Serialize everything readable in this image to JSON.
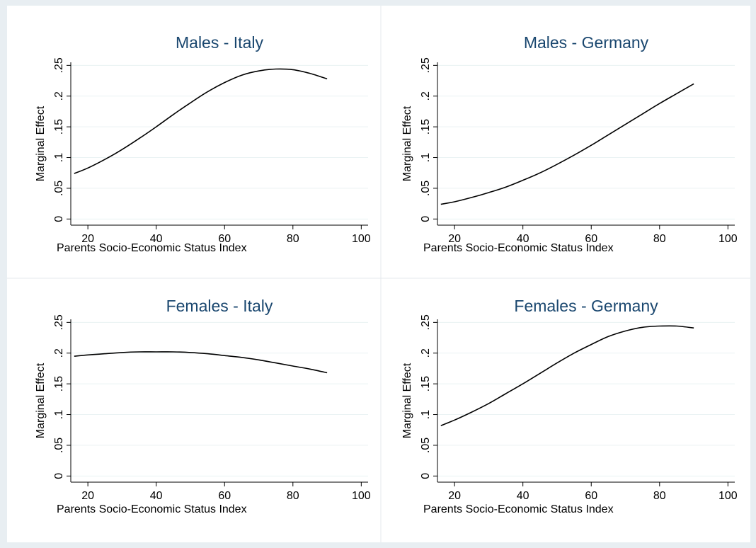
{
  "chart_data": [
    {
      "type": "line",
      "title": "Males - Italy",
      "xlabel": "Parents Socio-Economic Status Index",
      "ylabel": "Marginal Effect",
      "xlim": [
        15,
        102
      ],
      "ylim": [
        -0.01,
        0.255
      ],
      "xticks": [
        20,
        40,
        60,
        80,
        100
      ],
      "yticks": [
        0,
        0.05,
        0.1,
        0.15,
        0.2,
        0.25
      ],
      "xtick_labels": [
        "20",
        "40",
        "60",
        "80",
        "100"
      ],
      "ytick_labels": [
        "0",
        ".05",
        ".1",
        ".15",
        ".2",
        ".25"
      ],
      "grid": true,
      "series": [
        {
          "x": [
            16,
            20,
            25,
            30,
            35,
            40,
            45,
            50,
            55,
            60,
            65,
            70,
            75,
            80,
            85,
            90
          ],
          "y": [
            0.074,
            0.083,
            0.097,
            0.113,
            0.131,
            0.15,
            0.17,
            0.189,
            0.207,
            0.222,
            0.234,
            0.241,
            0.244,
            0.243,
            0.237,
            0.228
          ]
        }
      ]
    },
    {
      "type": "line",
      "title": "Males - Germany",
      "xlabel": "Parents Socio-Economic Status Index",
      "ylabel": "Marginal Effect",
      "xlim": [
        15,
        102
      ],
      "ylim": [
        -0.01,
        0.255
      ],
      "xticks": [
        20,
        40,
        60,
        80,
        100
      ],
      "yticks": [
        0,
        0.05,
        0.1,
        0.15,
        0.2,
        0.25
      ],
      "xtick_labels": [
        "20",
        "40",
        "60",
        "80",
        "100"
      ],
      "ytick_labels": [
        "0",
        ".05",
        ".1",
        ".15",
        ".2",
        ".25"
      ],
      "grid": true,
      "series": [
        {
          "x": [
            16,
            20,
            25,
            30,
            35,
            40,
            45,
            50,
            55,
            60,
            65,
            70,
            75,
            80,
            85,
            90
          ],
          "y": [
            0.024,
            0.028,
            0.035,
            0.043,
            0.052,
            0.063,
            0.075,
            0.089,
            0.104,
            0.12,
            0.137,
            0.154,
            0.171,
            0.188,
            0.204,
            0.22
          ]
        }
      ]
    },
    {
      "type": "line",
      "title": "Females - Italy",
      "xlabel": "Parents Socio-Economic Status Index",
      "ylabel": "Marginal Effect",
      "xlim": [
        15,
        102
      ],
      "ylim": [
        -0.01,
        0.255
      ],
      "xticks": [
        20,
        40,
        60,
        80,
        100
      ],
      "yticks": [
        0,
        0.05,
        0.1,
        0.15,
        0.2,
        0.25
      ],
      "xtick_labels": [
        "20",
        "40",
        "60",
        "80",
        "100"
      ],
      "ytick_labels": [
        "0",
        ".05",
        ".1",
        ".15",
        ".2",
        ".25"
      ],
      "grid": true,
      "series": [
        {
          "x": [
            16,
            20,
            25,
            30,
            35,
            40,
            45,
            50,
            55,
            60,
            65,
            70,
            75,
            80,
            85,
            90
          ],
          "y": [
            0.195,
            0.197,
            0.199,
            0.201,
            0.202,
            0.202,
            0.202,
            0.201,
            0.199,
            0.196,
            0.193,
            0.189,
            0.184,
            0.179,
            0.174,
            0.168
          ]
        }
      ]
    },
    {
      "type": "line",
      "title": "Females - Germany",
      "xlabel": "Parents Socio-Economic Status Index",
      "ylabel": "Marginal Effect",
      "xlim": [
        15,
        102
      ],
      "ylim": [
        -0.01,
        0.255
      ],
      "xticks": [
        20,
        40,
        60,
        80,
        100
      ],
      "yticks": [
        0,
        0.05,
        0.1,
        0.15,
        0.2,
        0.25
      ],
      "xtick_labels": [
        "20",
        "40",
        "60",
        "80",
        "100"
      ],
      "ytick_labels": [
        "0",
        ".05",
        ".1",
        ".15",
        ".2",
        ".25"
      ],
      "grid": true,
      "series": [
        {
          "x": [
            16,
            20,
            25,
            30,
            35,
            40,
            45,
            50,
            55,
            60,
            65,
            70,
            75,
            80,
            85,
            90
          ],
          "y": [
            0.082,
            0.091,
            0.104,
            0.118,
            0.134,
            0.15,
            0.167,
            0.184,
            0.2,
            0.214,
            0.227,
            0.236,
            0.242,
            0.244,
            0.244,
            0.241
          ]
        }
      ]
    }
  ],
  "colors": {
    "title": "#1a476f",
    "grid": "#eaf2f3",
    "background": "#e8eef2",
    "plot": "#ffffff",
    "line": "#000000"
  }
}
